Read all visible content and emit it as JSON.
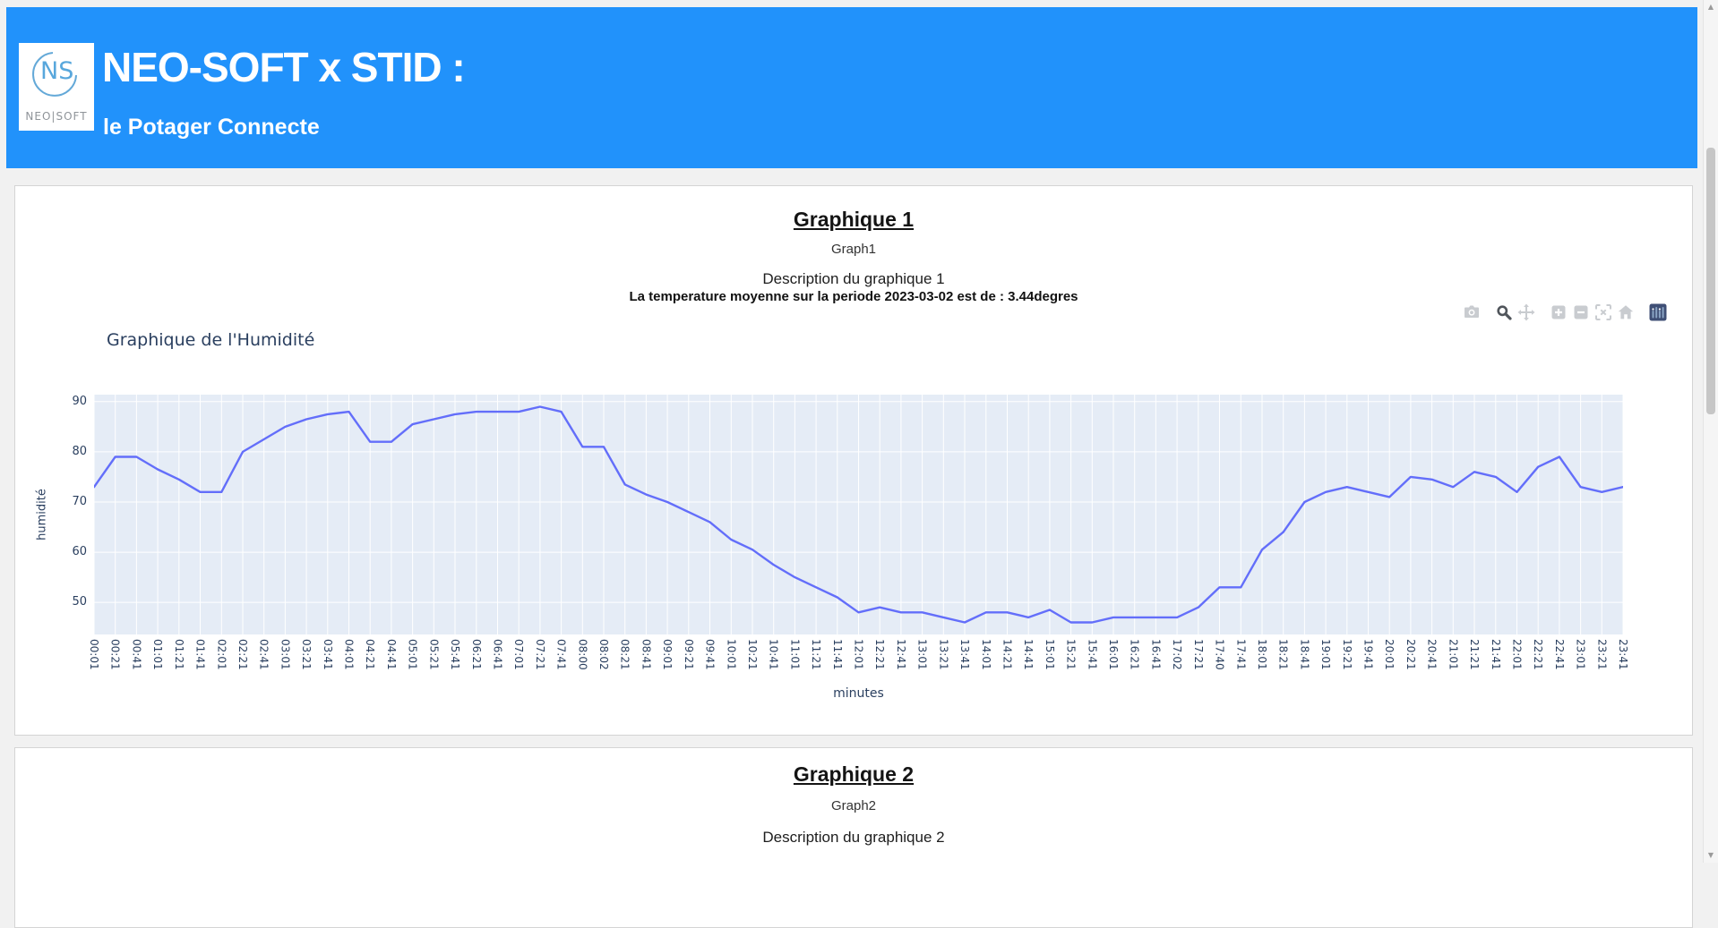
{
  "header": {
    "title": "NEO-SOFT x STID :",
    "subtitle": "le Potager Connecte",
    "background_color": "#2192fb",
    "logo": {
      "monogram": "NS",
      "wordmark": "NEO|SOFT"
    }
  },
  "card1": {
    "title": "Graphique 1",
    "subtitle": "Graph1",
    "description": "Description du graphique 1",
    "stat_line": "La temperature moyenne sur la periode 2023-03-02 est de : 3.44degres",
    "modebar": {
      "buttons": [
        "camera",
        "zoom",
        "pan",
        "zoom-in",
        "zoom-out",
        "autoscale",
        "reset-home",
        "plotly-logo"
      ],
      "active_button": "zoom",
      "icon_color": "#c9ccd0",
      "active_icon_color": "#50555b",
      "logo_color": "#3f4f75"
    }
  },
  "chart_data": {
    "type": "line",
    "title": "Graphique de l'Humidité",
    "xlabel": "minutes",
    "ylabel": "humidité",
    "grid": true,
    "legend": "none",
    "tick_angle": 90,
    "plot_bg": "#e5ecf6",
    "line_color": "#636efa",
    "yticks": [
      50,
      60,
      70,
      80,
      90
    ],
    "ylim": [
      43.6,
      91.4
    ],
    "categories": [
      "00:01",
      "00:21",
      "00:41",
      "01:01",
      "01:21",
      "01:41",
      "02:01",
      "02:21",
      "02:41",
      "03:01",
      "03:21",
      "03:41",
      "04:01",
      "04:21",
      "04:41",
      "05:01",
      "05:21",
      "05:41",
      "06:21",
      "06:41",
      "07:01",
      "07:21",
      "07:41",
      "08:00",
      "08:02",
      "08:21",
      "08:41",
      "09:01",
      "09:21",
      "09:41",
      "10:01",
      "10:21",
      "10:41",
      "11:01",
      "11:21",
      "11:41",
      "12:01",
      "12:21",
      "12:41",
      "13:01",
      "13:21",
      "13:41",
      "14:01",
      "14:21",
      "14:41",
      "15:01",
      "15:21",
      "15:41",
      "16:01",
      "16:21",
      "16:41",
      "17:02",
      "17:21",
      "17:40",
      "17:41",
      "18:01",
      "18:21",
      "18:41",
      "19:01",
      "19:21",
      "19:41",
      "20:01",
      "20:21",
      "20:41",
      "21:01",
      "21:21",
      "21:41",
      "22:01",
      "22:21",
      "22:41",
      "23:01",
      "23:21",
      "23:41"
    ],
    "values": [
      73,
      79,
      79,
      76.5,
      74.5,
      72,
      72,
      80,
      82.5,
      85,
      86.5,
      87.5,
      88,
      82,
      82,
      85.5,
      86.5,
      87.5,
      88,
      88,
      88,
      89,
      88,
      81,
      81,
      73.5,
      71.5,
      70,
      68,
      66,
      62.5,
      60.5,
      57.5,
      55,
      53,
      51,
      48,
      49,
      48,
      48,
      47,
      46,
      48,
      48,
      47,
      48.5,
      46,
      46,
      47,
      47,
      47,
      47,
      49,
      53,
      53,
      60.5,
      64,
      70,
      72,
      73,
      72,
      71,
      75,
      74.5,
      73,
      76,
      75,
      72,
      77,
      79,
      73,
      72,
      73
    ]
  },
  "card2": {
    "title": "Graphique 2",
    "subtitle": "Graph2",
    "description": "Description du graphique 2"
  }
}
